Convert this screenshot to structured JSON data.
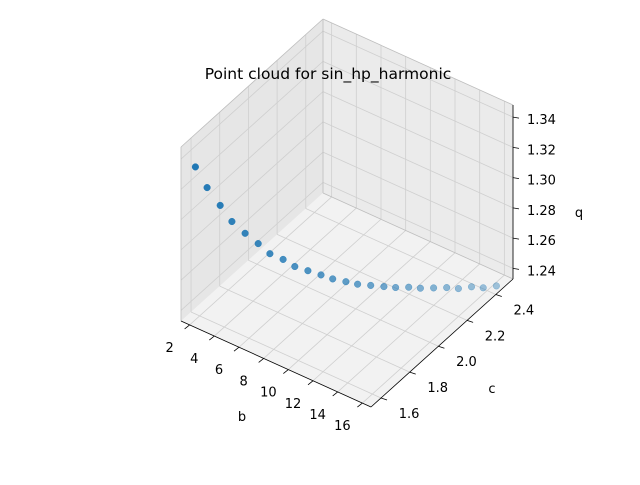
{
  "chart_data": {
    "type": "scatter",
    "projection": "3d",
    "title": "Point cloud for sin_hp_harmonic",
    "xlabel": "b",
    "ylabel": "c",
    "zlabel": "q",
    "xticks": [
      "2",
      "4",
      "6",
      "8",
      "10",
      "12",
      "14",
      "16"
    ],
    "yticks": [
      "1.6",
      "1.8",
      "2.0",
      "2.2",
      "2.4"
    ],
    "zticks": [
      "1.24",
      "1.26",
      "1.28",
      "1.30",
      "1.32",
      "1.34"
    ],
    "xlim": [
      1.3,
      16.7
    ],
    "ylim": [
      1.53,
      2.52
    ],
    "zlim": [
      1.233,
      1.348
    ],
    "grid": true,
    "colors": {
      "marker": "#1f77b4",
      "pane": "#f2f2f2",
      "grid": "#cfcfcf"
    },
    "points": [
      {
        "b": 2.0,
        "c": 1.57,
        "q": 1.334
      },
      {
        "b": 2.6,
        "c": 1.6,
        "q": 1.32
      },
      {
        "b": 3.2,
        "c": 1.64,
        "q": 1.307
      },
      {
        "b": 3.8,
        "c": 1.67,
        "q": 1.296
      },
      {
        "b": 4.4,
        "c": 1.71,
        "q": 1.287
      },
      {
        "b": 5.0,
        "c": 1.75,
        "q": 1.279
      },
      {
        "b": 5.6,
        "c": 1.78,
        "q": 1.272
      },
      {
        "b": 6.2,
        "c": 1.82,
        "q": 1.267
      },
      {
        "b": 6.8,
        "c": 1.85,
        "q": 1.262
      },
      {
        "b": 7.4,
        "c": 1.89,
        "q": 1.258
      },
      {
        "b": 8.0,
        "c": 1.93,
        "q": 1.254
      },
      {
        "b": 8.6,
        "c": 1.96,
        "q": 1.251
      },
      {
        "b": 9.2,
        "c": 2.0,
        "q": 1.248
      },
      {
        "b": 9.8,
        "c": 2.03,
        "q": 1.246
      },
      {
        "b": 10.4,
        "c": 2.07,
        "q": 1.244
      },
      {
        "b": 11.0,
        "c": 2.11,
        "q": 1.242
      },
      {
        "b": 11.6,
        "c": 2.14,
        "q": 1.241
      },
      {
        "b": 12.2,
        "c": 2.18,
        "q": 1.24
      },
      {
        "b": 12.8,
        "c": 2.21,
        "q": 1.239
      },
      {
        "b": 13.4,
        "c": 2.25,
        "q": 1.238
      },
      {
        "b": 14.0,
        "c": 2.29,
        "q": 1.237
      },
      {
        "b": 14.6,
        "c": 2.32,
        "q": 1.236
      },
      {
        "b": 15.2,
        "c": 2.36,
        "q": 1.236
      },
      {
        "b": 15.8,
        "c": 2.39,
        "q": 1.235
      },
      {
        "b": 16.4,
        "c": 2.43,
        "q": 1.235
      }
    ]
  }
}
